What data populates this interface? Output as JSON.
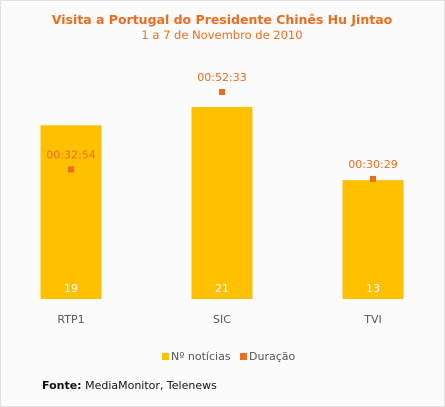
{
  "chart_data": {
    "type": "bar",
    "title": "Visita a Portugal do Presidente Chinês Hu Jintao",
    "subtitle": "1 a 7 de Novembro de 2010",
    "categories": [
      "RTP1",
      "SIC",
      "TVI"
    ],
    "series": [
      {
        "name": "Nº notícias",
        "type": "bar",
        "color": "#ffc000",
        "values": [
          19,
          21,
          13
        ],
        "labels": [
          "19",
          "21",
          "13"
        ]
      },
      {
        "name": "Duração",
        "type": "scatter",
        "color": "#ee6c1f",
        "values_seconds": [
          1974,
          3153,
          1829
        ],
        "labels": [
          "00:32:54",
          "00:52:33",
          "00:30:29"
        ]
      }
    ],
    "legend": "bottom-center",
    "grid": false
  },
  "source": {
    "label": "Fonte:",
    "text": " MediaMonitor, Telenews"
  }
}
